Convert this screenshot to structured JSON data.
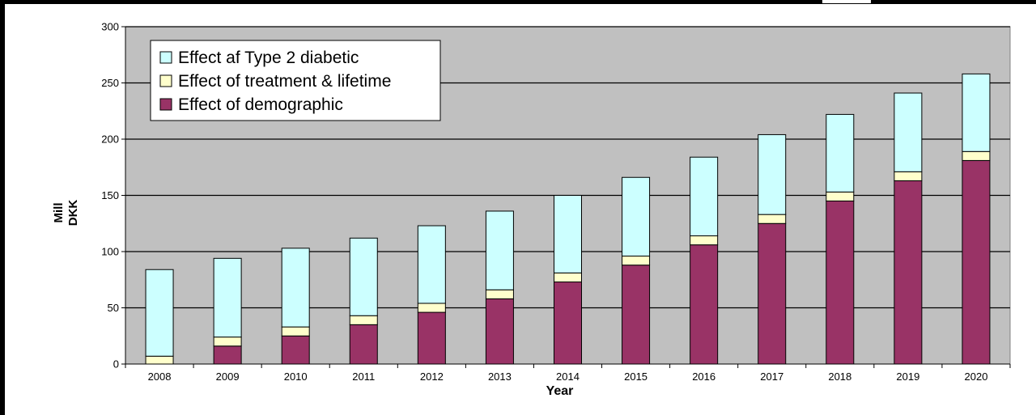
{
  "chart_data": {
    "type": "bar",
    "stacked": true,
    "title": "",
    "xlabel": "Year",
    "ylabel_lines": [
      "Mill",
      "DKK"
    ],
    "ylim": [
      0,
      300
    ],
    "yticks": [
      0,
      50,
      100,
      150,
      200,
      250,
      300
    ],
    "grid": true,
    "legend_position": "top-left",
    "plot_background": "#C0C0C0",
    "categories": [
      "2008",
      "2009",
      "2010",
      "2011",
      "2012",
      "2013",
      "2014",
      "2015",
      "2016",
      "2017",
      "2018",
      "2019",
      "2020"
    ],
    "series": [
      {
        "name": "Effect of demographic",
        "color": "#993366",
        "values": [
          0,
          16,
          25,
          35,
          46,
          58,
          73,
          88,
          106,
          125,
          145,
          163,
          181
        ]
      },
      {
        "name": "Effect of treatment & lifetime",
        "color": "#FFFFCC",
        "values": [
          7,
          8,
          8,
          8,
          8,
          8,
          8,
          8,
          8,
          8,
          8,
          8,
          8
        ]
      },
      {
        "name": "Effect af Type 2 diabetic",
        "color": "#CCFFFF",
        "values": [
          77,
          70,
          70,
          69,
          69,
          70,
          69,
          70,
          70,
          71,
          69,
          70,
          69
        ]
      }
    ],
    "legend_order": [
      "Effect af Type 2 diabetic",
      "Effect of treatment & lifetime",
      "Effect of demographic"
    ]
  }
}
